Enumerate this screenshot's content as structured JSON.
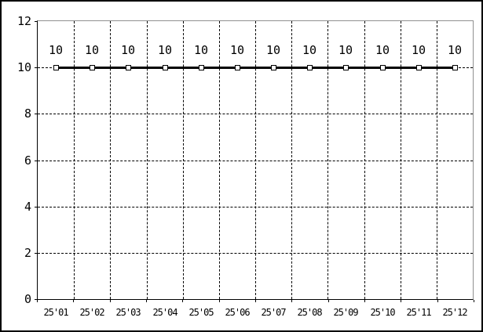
{
  "style": {
    "background": "#ffffff",
    "outer_border_color": "#000000",
    "axis_color": "#000000",
    "frame_color": "#909090",
    "grid_color": "#000000",
    "line_color": "#000000",
    "marker_fill": "#ffffff",
    "marker_border": "#000000",
    "text_color": "#000000"
  },
  "chart_data": {
    "type": "line",
    "title": "",
    "xlabel": "",
    "ylabel": "",
    "categories": [
      "25'01",
      "25'02",
      "25'03",
      "25'04",
      "25'05",
      "25'06",
      "25'07",
      "25'08",
      "25'09",
      "25'10",
      "25'11",
      "25'12"
    ],
    "series": [
      {
        "name": "series-1",
        "color": "#000000",
        "marker": "square",
        "values": [
          10,
          10,
          10,
          10,
          10,
          10,
          10,
          10,
          10,
          10,
          10,
          10
        ]
      }
    ],
    "point_labels": [
      "10",
      "10",
      "10",
      "10",
      "10",
      "10",
      "10",
      "10",
      "10",
      "10",
      "10",
      "10"
    ],
    "ylim": [
      0,
      12
    ],
    "yticks": [
      0,
      2,
      4,
      6,
      8,
      10,
      12
    ],
    "ytick_labels": [
      "0",
      "2",
      "4",
      "6",
      "8",
      "10",
      "12"
    ],
    "grid": "dashed-both",
    "legend": "none"
  }
}
